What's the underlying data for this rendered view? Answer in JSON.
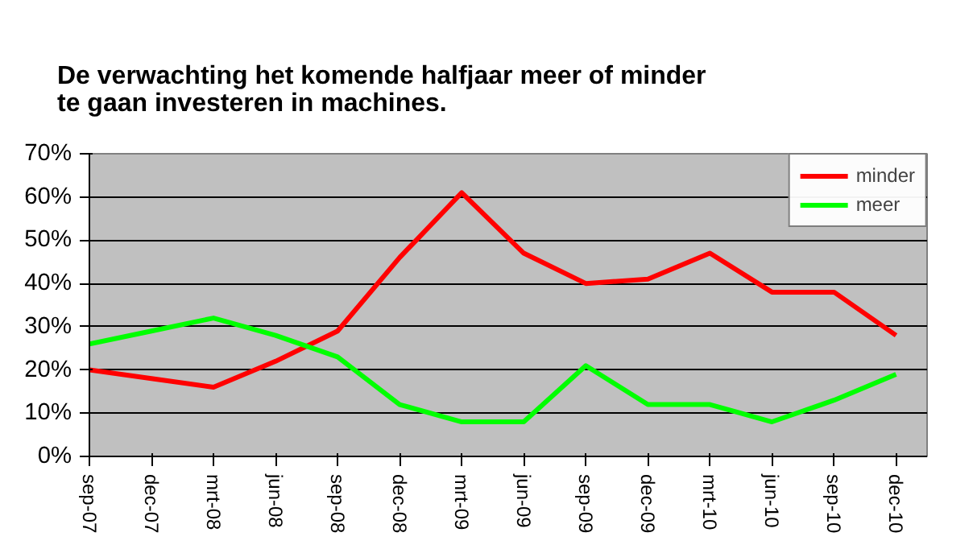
{
  "chart_data": {
    "type": "line",
    "title": "De verwachting het komende halfjaar meer of minder\nte gaan investeren in machines.",
    "categories": [
      "sep-07",
      "dec-07",
      "mrt-08",
      "jun-08",
      "sep-08",
      "dec-08",
      "mrt-09",
      "jun-09",
      "sep-09",
      "dec-09",
      "mrt-10",
      "jun-10",
      "sep-10",
      "dec-10"
    ],
    "series": [
      {
        "name": "minder",
        "color": "#ff0000",
        "values": [
          20,
          18,
          16,
          22,
          29,
          46,
          61,
          47,
          40,
          41,
          47,
          38,
          38,
          28
        ]
      },
      {
        "name": "meer",
        "color": "#00ff00",
        "values": [
          26,
          29,
          32,
          28,
          23,
          12,
          8,
          8,
          21,
          12,
          12,
          8,
          13,
          19
        ]
      }
    ],
    "ylim": [
      0,
      70
    ],
    "yticks": [
      {
        "value": 0,
        "label": "0%"
      },
      {
        "value": 10,
        "label": "10%"
      },
      {
        "value": 20,
        "label": "20%"
      },
      {
        "value": 30,
        "label": "30%"
      },
      {
        "value": 40,
        "label": "40%"
      },
      {
        "value": 50,
        "label": "50%"
      },
      {
        "value": 60,
        "label": "60%"
      },
      {
        "value": 70,
        "label": "70%"
      }
    ],
    "grid": "y",
    "legend": "top right",
    "marker": "none",
    "line_style": "solid"
  }
}
